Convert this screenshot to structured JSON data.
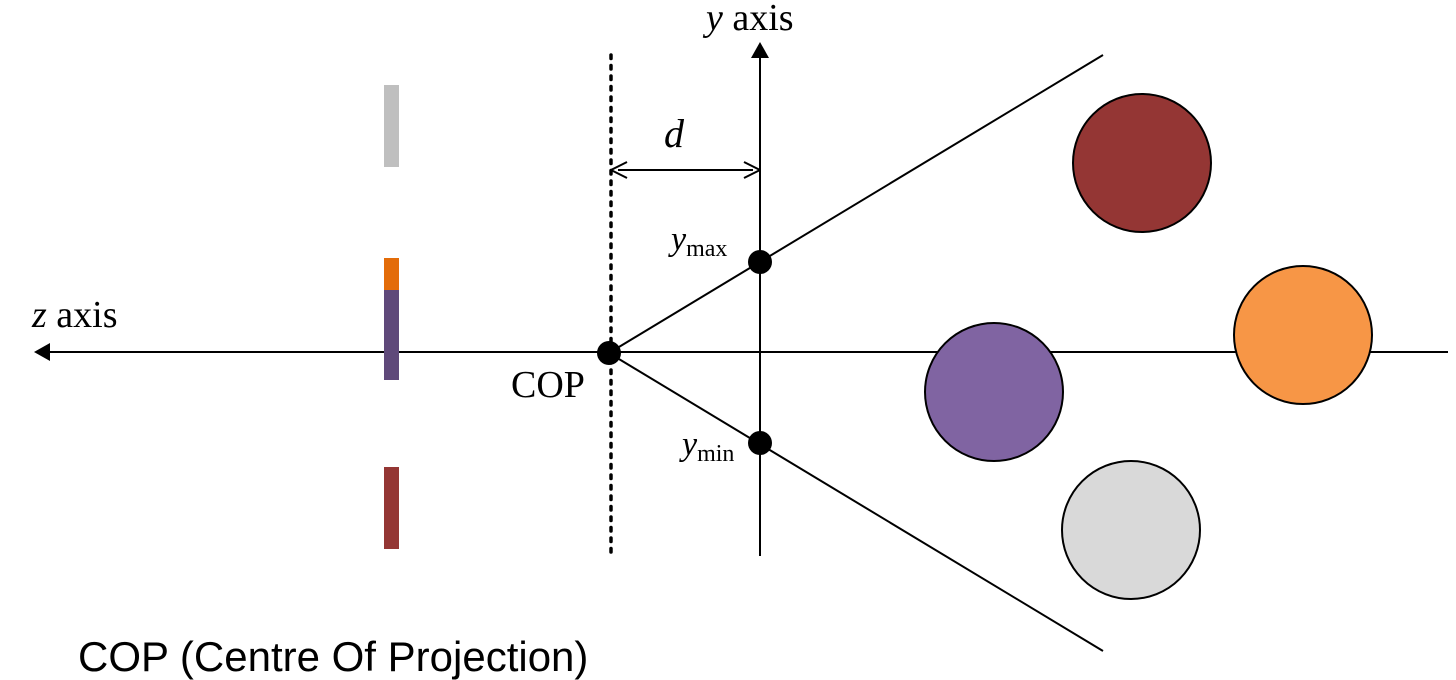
{
  "labels": {
    "y_axis_var": "y",
    "y_axis_word": " axis",
    "z_axis_var": "z",
    "z_axis_word": " axis",
    "distance": "d",
    "ymax_base": "y",
    "ymax_sub": "max",
    "ymin_base": "y",
    "ymin_sub": "min",
    "cop": "COP",
    "caption": "COP (Centre Of Projection)"
  },
  "colors": {
    "dark_red": "#943634",
    "orange": "#F79646",
    "purple": "#8064A2",
    "light_gray": "#D9D9D9",
    "gray_bar": "#BFBFBF",
    "orange_bar": "#E36C09",
    "purple_bar": "#5F497A",
    "red_bar": "#943634"
  }
}
